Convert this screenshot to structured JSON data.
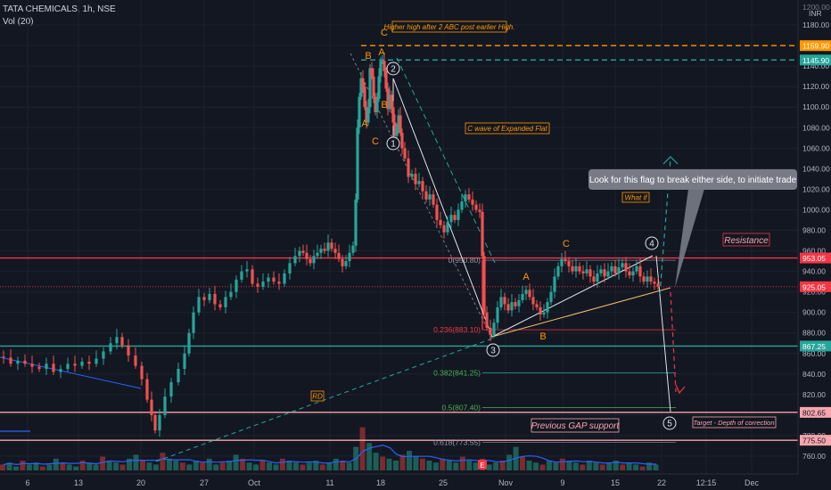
{
  "header": {
    "symbol_line": "TATA CHEMICALS, 1h, NSE",
    "volume_line": "Vol (20)"
  },
  "chart_data": {
    "type": "candlestick",
    "title": "TATA CHEMICALS, 1h, NSE",
    "currency": "INR",
    "ylim": [
      740,
      1200
    ],
    "x_ticks": [
      "6",
      "13",
      "20",
      "27",
      "Oct",
      "11",
      "18",
      "25",
      "Nov",
      "9",
      "15",
      "22",
      "12:15",
      "Dec"
    ],
    "y_ticks": [
      760,
      780,
      800,
      820,
      840,
      860,
      880,
      900,
      920,
      940,
      960,
      980,
      1000,
      1020,
      1040,
      1060,
      1080,
      1100,
      1120,
      1140,
      1160,
      1180
    ],
    "price_path": [
      [
        0,
        857
      ],
      [
        8,
        856
      ],
      [
        16,
        850
      ],
      [
        24,
        853
      ],
      [
        32,
        850
      ],
      [
        40,
        847
      ],
      [
        48,
        845
      ],
      [
        56,
        850
      ],
      [
        64,
        842
      ],
      [
        72,
        845
      ],
      [
        80,
        850
      ],
      [
        88,
        848
      ],
      [
        96,
        852
      ],
      [
        104,
        850
      ],
      [
        112,
        855
      ],
      [
        120,
        862
      ],
      [
        128,
        870
      ],
      [
        134,
        876
      ],
      [
        140,
        868
      ],
      [
        148,
        858
      ],
      [
        156,
        848
      ],
      [
        162,
        835
      ],
      [
        168,
        815
      ],
      [
        172,
        800
      ],
      [
        176,
        785
      ],
      [
        182,
        800
      ],
      [
        188,
        818
      ],
      [
        196,
        832
      ],
      [
        204,
        845
      ],
      [
        210,
        860
      ],
      [
        214,
        880
      ],
      [
        220,
        900
      ],
      [
        226,
        915
      ],
      [
        232,
        912
      ],
      [
        238,
        918
      ],
      [
        244,
        908
      ],
      [
        250,
        905
      ],
      [
        256,
        915
      ],
      [
        262,
        920
      ],
      [
        268,
        932
      ],
      [
        274,
        940
      ],
      [
        280,
        942
      ],
      [
        286,
        928
      ],
      [
        292,
        925
      ],
      [
        298,
        930
      ],
      [
        304,
        934
      ],
      [
        310,
        930
      ],
      [
        316,
        928
      ],
      [
        322,
        938
      ],
      [
        328,
        948
      ],
      [
        334,
        955
      ],
      [
        338,
        960
      ],
      [
        342,
        958
      ],
      [
        346,
        952
      ],
      [
        350,
        948
      ],
      [
        354,
        955
      ],
      [
        358,
        958
      ],
      [
        362,
        962
      ],
      [
        366,
        960
      ],
      [
        370,
        968
      ],
      [
        374,
        962
      ],
      [
        378,
        958
      ],
      [
        382,
        952
      ],
      [
        386,
        945
      ],
      [
        390,
        950
      ],
      [
        394,
        958
      ],
      [
        398,
        965
      ],
      [
        400,
        1010
      ],
      [
        402,
        1080
      ],
      [
        404,
        1110
      ],
      [
        406,
        1128
      ],
      [
        408,
        1120
      ],
      [
        410,
        1100
      ],
      [
        412,
        1085
      ],
      [
        414,
        1100
      ],
      [
        416,
        1138
      ],
      [
        418,
        1130
      ],
      [
        420,
        1110
      ],
      [
        422,
        1095
      ],
      [
        424,
        1108
      ],
      [
        426,
        1130
      ],
      [
        428,
        1145
      ],
      [
        430,
        1145
      ],
      [
        432,
        1135
      ],
      [
        434,
        1118
      ],
      [
        436,
        1098
      ],
      [
        438,
        1112
      ],
      [
        440,
        1100
      ],
      [
        442,
        1085
      ],
      [
        444,
        1072
      ],
      [
        446,
        1080
      ],
      [
        448,
        1092
      ],
      [
        450,
        1075
      ],
      [
        452,
        1060
      ],
      [
        456,
        1050
      ],
      [
        460,
        1032
      ],
      [
        464,
        1035
      ],
      [
        468,
        1025
      ],
      [
        472,
        1028
      ],
      [
        476,
        1018
      ],
      [
        480,
        1010
      ],
      [
        484,
        1015
      ],
      [
        488,
        1005
      ],
      [
        492,
        990
      ],
      [
        496,
        985
      ],
      [
        500,
        978
      ],
      [
        504,
        988
      ],
      [
        508,
        995
      ],
      [
        512,
        990
      ],
      [
        516,
        1000
      ],
      [
        520,
        1008
      ],
      [
        524,
        1015
      ],
      [
        528,
        1010
      ],
      [
        532,
        1005
      ],
      [
        536,
        1000
      ],
      [
        540,
        998
      ],
      [
        542,
        955
      ],
      [
        544,
        900
      ],
      [
        548,
        885
      ],
      [
        552,
        878
      ],
      [
        556,
        890
      ],
      [
        560,
        905
      ],
      [
        564,
        915
      ],
      [
        568,
        908
      ],
      [
        572,
        902
      ],
      [
        576,
        910
      ],
      [
        580,
        906
      ],
      [
        584,
        912
      ],
      [
        588,
        918
      ],
      [
        592,
        922
      ],
      [
        596,
        915
      ],
      [
        600,
        908
      ],
      [
        604,
        905
      ],
      [
        608,
        898
      ],
      [
        612,
        900
      ],
      [
        616,
        910
      ],
      [
        620,
        920
      ],
      [
        624,
        935
      ],
      [
        628,
        945
      ],
      [
        632,
        952
      ],
      [
        636,
        950
      ],
      [
        640,
        945
      ],
      [
        644,
        940
      ],
      [
        648,
        945
      ],
      [
        652,
        940
      ],
      [
        656,
        938
      ],
      [
        660,
        942
      ],
      [
        664,
        935
      ],
      [
        668,
        930
      ],
      [
        672,
        938
      ],
      [
        676,
        942
      ],
      [
        680,
        935
      ],
      [
        684,
        940
      ],
      [
        688,
        945
      ],
      [
        692,
        938
      ],
      [
        696,
        944
      ],
      [
        700,
        948
      ],
      [
        704,
        940
      ],
      [
        708,
        936
      ],
      [
        712,
        940
      ],
      [
        716,
        945
      ],
      [
        720,
        935
      ],
      [
        724,
        930
      ],
      [
        728,
        935
      ],
      [
        732,
        930
      ],
      [
        736,
        928
      ],
      [
        740,
        925
      ]
    ],
    "horizontal_levels": [
      {
        "value": 1159.9,
        "label": "1159.90",
        "color": "#ff9800",
        "style": "dashed"
      },
      {
        "value": 1145.9,
        "label": "1145.90",
        "color": "#26a69a",
        "style": "dashed"
      },
      {
        "value": 953.05,
        "label": "953.05",
        "color": "#f23645",
        "style": "solid"
      },
      {
        "value": 925.05,
        "label": "925.05",
        "color": "#f23645",
        "style": "last-price"
      },
      {
        "value": 867.25,
        "label": "867.25",
        "color": "#26a69a",
        "style": "solid"
      },
      {
        "value": 802.65,
        "label": "802.65",
        "color": "#f7a5ae",
        "style": "solid"
      },
      {
        "value": 775.5,
        "label": "775.50",
        "color": "#f7a5ae",
        "style": "solid"
      }
    ],
    "fibonacci": [
      {
        "label": "0(950.80)",
        "value": 950.8
      },
      {
        "label": "0.236(883.10)",
        "value": 883.1
      },
      {
        "label": "0.382(841.25)",
        "value": 841.25
      },
      {
        "label": "0.5(807.40)",
        "value": 807.4
      },
      {
        "label": "0.618(773.55)",
        "value": 773.55
      }
    ],
    "volume": [
      3,
      4,
      2,
      5,
      3,
      4,
      2,
      3,
      6,
      4,
      3,
      2,
      5,
      4,
      3,
      7,
      5,
      4,
      3,
      6,
      8,
      5,
      4,
      3,
      9,
      6,
      5,
      4,
      3,
      5,
      4,
      6,
      3,
      4,
      5,
      8,
      6,
      4,
      3,
      5,
      4,
      3,
      6,
      5,
      4,
      3,
      4,
      5,
      3,
      4,
      6,
      5,
      4,
      12,
      22,
      14,
      9,
      7,
      6,
      5,
      8,
      10,
      7,
      6,
      5,
      4,
      6,
      5,
      4,
      7,
      5,
      4,
      6,
      3,
      4,
      5,
      8,
      12,
      7,
      5,
      4,
      3,
      5,
      4,
      6,
      5,
      4,
      3,
      5,
      4,
      3,
      4,
      5,
      3,
      4,
      3,
      2,
      4,
      3
    ]
  },
  "annotations": {
    "higher_high": "Higher high after 2 ABC post earlier High.",
    "c_wave": "C wave of Expanded Flat",
    "what_if": "What if",
    "rd": "RD",
    "resistance": "Resistance",
    "look_for": "Look for this flag to break either side, to initiate trade",
    "prev_gap": "Previous GAP support",
    "target": "Target - Depth of correction",
    "wave_c_top": "C",
    "wave_b_top": "B",
    "wave_a_top": "A",
    "wave_a_low": "A",
    "wave_b_low": "B",
    "wave_c_low": "C",
    "wave_a_flat": "A",
    "wave_b_flat": "B",
    "wave_c_flat": "C",
    "circle_1": "1",
    "circle_2": "2",
    "circle_3": "3",
    "circle_4": "4",
    "circle_5": "5",
    "price_top": "1200.00",
    "inr": "INR",
    "e_badge": "E"
  }
}
